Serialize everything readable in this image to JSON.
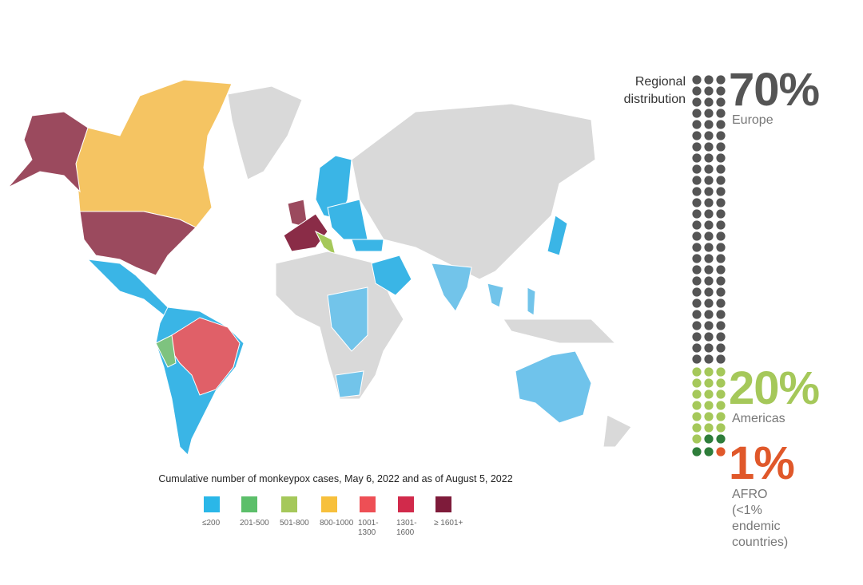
{
  "legend": {
    "title": "Cumulative number of monkeypox cases, May 6, 2022 and as of August 5, 2022",
    "items": [
      {
        "label": "≤200",
        "color": "#2ab7e8"
      },
      {
        "label": "201-500",
        "color": "#5cbf6a"
      },
      {
        "label": "501-800",
        "color": "#a5c85a"
      },
      {
        "label": "800-1000",
        "color": "#f7c03c"
      },
      {
        "label": "1001-1300",
        "color": "#ee4f55"
      },
      {
        "label": "1301-1600",
        "color": "#d12a4b"
      },
      {
        "label": "≥ 1601+",
        "color": "#7e1b3a"
      }
    ]
  },
  "distribution": {
    "title": "Regional distribution",
    "regions": [
      {
        "percent": "70%",
        "name": "Europe",
        "color": "#555555"
      },
      {
        "percent": "20%",
        "name": "Americas",
        "color": "#a5c85a"
      },
      {
        "percent": "1%",
        "name": "AFRO",
        "note": "(<1% endemic countries)",
        "color": "#e0582a"
      }
    ]
  }
}
